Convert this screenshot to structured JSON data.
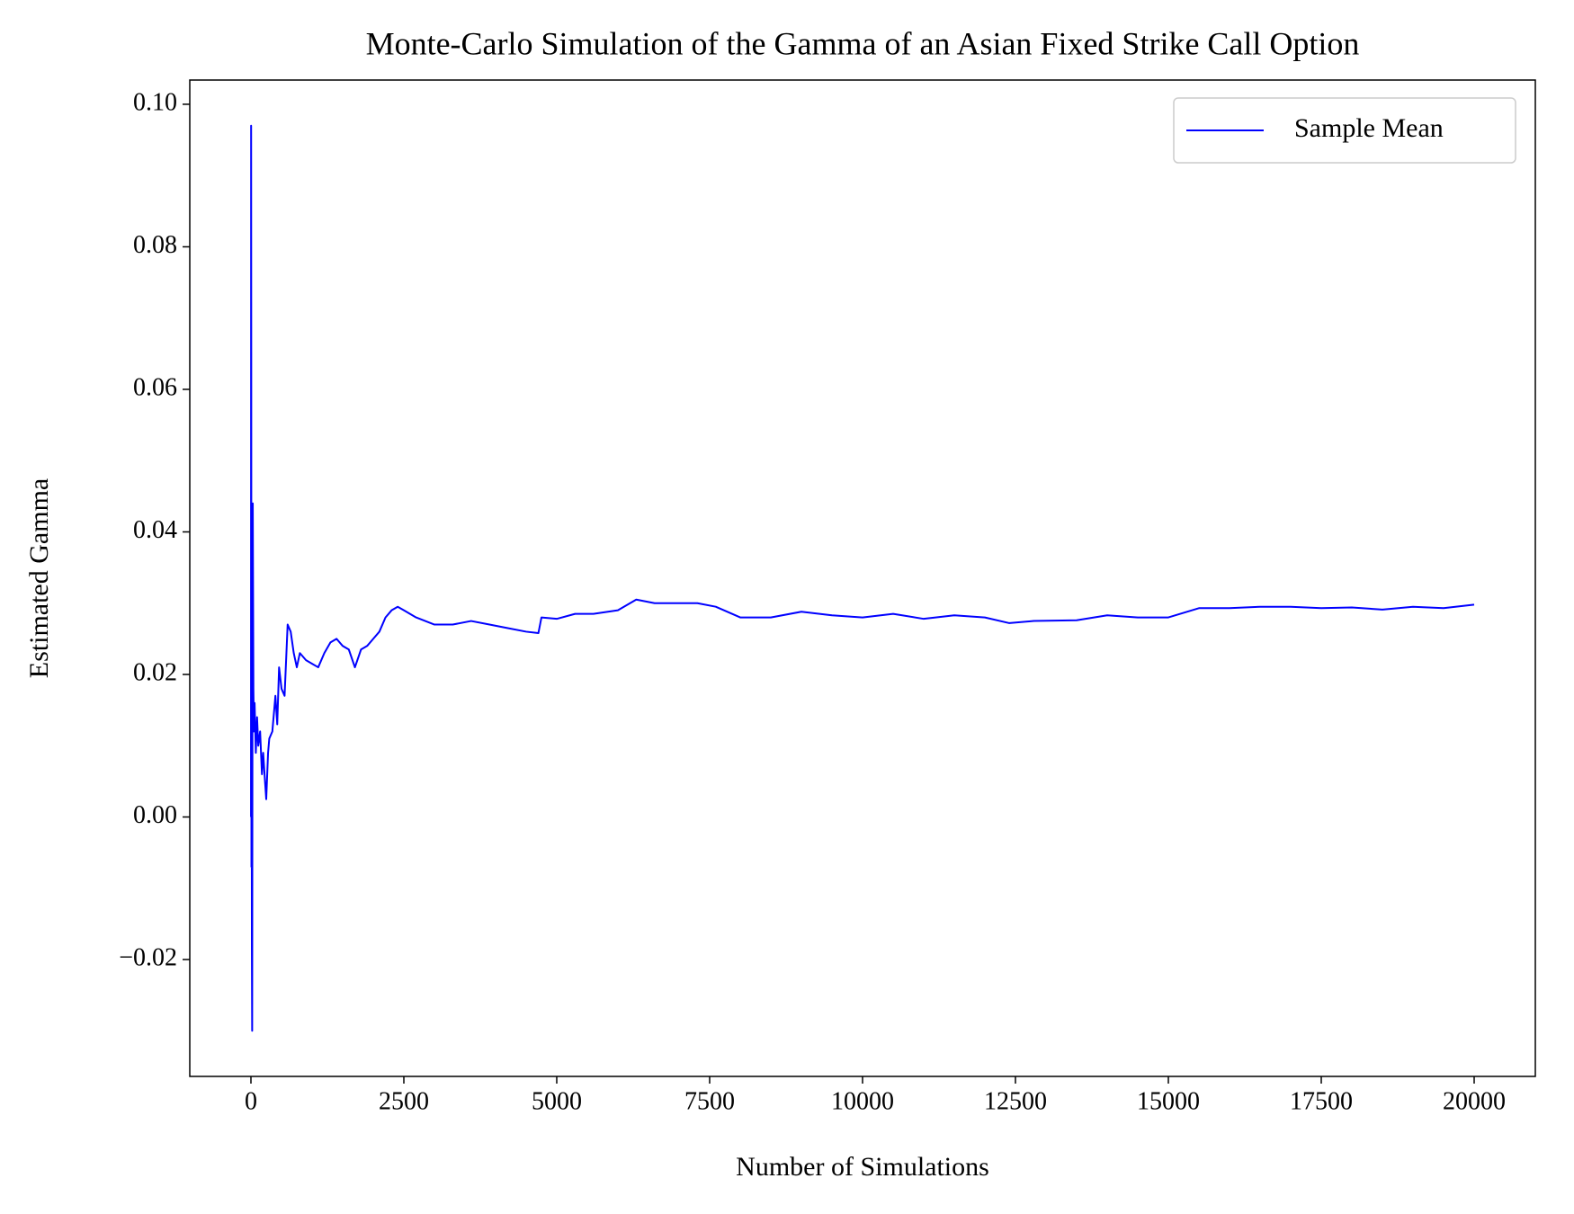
{
  "chart_data": {
    "type": "line",
    "title": "Monte-Carlo Simulation of the Gamma of an Asian Fixed Strike Call Option",
    "xlabel": "Number of Simulations",
    "ylabel": "Estimated Gamma",
    "x": [
      1,
      3,
      5,
      8,
      10,
      15,
      20,
      25,
      30,
      40,
      50,
      60,
      80,
      100,
      120,
      150,
      180,
      200,
      230,
      250,
      280,
      300,
      350,
      400,
      430,
      460,
      500,
      550,
      600,
      650,
      700,
      750,
      800,
      900,
      1000,
      1100,
      1200,
      1300,
      1400,
      1500,
      1600,
      1700,
      1800,
      1900,
      2000,
      2100,
      2200,
      2300,
      2400,
      2500,
      2700,
      3000,
      3300,
      3600,
      3900,
      4200,
      4500,
      4700,
      4750,
      5000,
      5300,
      5600,
      6000,
      6300,
      6600,
      7000,
      7300,
      7600,
      8000,
      8500,
      9000,
      9500,
      10000,
      10500,
      11000,
      11500,
      12000,
      12400,
      12800,
      13500,
      14000,
      14500,
      15000,
      15500,
      16000,
      16500,
      17000,
      17500,
      18000,
      18500,
      19000,
      19500,
      20000
    ],
    "series": [
      {
        "name": "Sample Mean",
        "color": "#0000ff",
        "values": [
          0.0,
          0.097,
          0.065,
          -0.007,
          0.02,
          -0.018,
          -0.03,
          0.015,
          0.044,
          0.018,
          0.012,
          0.016,
          0.009,
          0.014,
          0.01,
          0.012,
          0.006,
          0.009,
          0.005,
          0.0025,
          0.009,
          0.011,
          0.012,
          0.017,
          0.013,
          0.021,
          0.018,
          0.017,
          0.027,
          0.026,
          0.023,
          0.021,
          0.023,
          0.022,
          0.0215,
          0.021,
          0.023,
          0.0245,
          0.025,
          0.024,
          0.0235,
          0.021,
          0.0235,
          0.024,
          0.025,
          0.026,
          0.028,
          0.029,
          0.0295,
          0.029,
          0.028,
          0.027,
          0.027,
          0.0275,
          0.027,
          0.0265,
          0.026,
          0.0258,
          0.028,
          0.0278,
          0.0285,
          0.0285,
          0.029,
          0.0305,
          0.03,
          0.03,
          0.03,
          0.0295,
          0.028,
          0.028,
          0.0288,
          0.0283,
          0.028,
          0.0285,
          0.0278,
          0.0283,
          0.028,
          0.0272,
          0.0275,
          0.0276,
          0.0283,
          0.028,
          0.028,
          0.0293,
          0.0293,
          0.0295,
          0.0295,
          0.0293,
          0.0294,
          0.0291,
          0.0295,
          0.0293,
          0.0298
        ]
      }
    ],
    "xlim": [
      -1000,
      21000
    ],
    "xticks": [
      0,
      2500,
      5000,
      7500,
      10000,
      12500,
      15000,
      17500,
      20000
    ],
    "ylim": [
      -0.0364,
      0.1034
    ],
    "yticks": [
      {
        "value": -0.02,
        "label": "−0.02"
      },
      {
        "value": 0,
        "label": "0.00"
      },
      0.02,
      0.04,
      0.06,
      0.08,
      {
        "value": 0.1,
        "label": "0.10"
      }
    ],
    "legend": "upper right",
    "grid": false
  }
}
